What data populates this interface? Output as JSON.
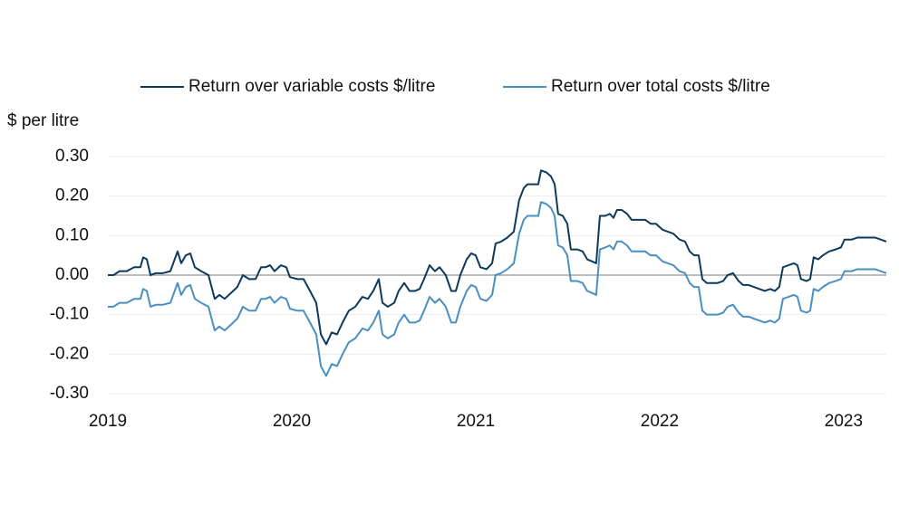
{
  "chart_data": {
    "type": "line",
    "y_axis_label": "$ per litre",
    "x": [
      2019,
      2019.03,
      2019.064,
      2019.103,
      2019.143,
      2019.177,
      2019.192,
      2019.212,
      2019.232,
      2019.261,
      2019.3,
      2019.34,
      2019.379,
      2019.399,
      2019.424,
      2019.448,
      2019.473,
      2019.507,
      2019.547,
      2019.581,
      2019.606,
      2019.635,
      2019.67,
      2019.704,
      2019.734,
      2019.768,
      2019.803,
      2019.833,
      2019.857,
      2019.882,
      2019.906,
      2019.941,
      2019.97,
      2019.99,
      2020.03,
      2020.064,
      2020.099,
      2020.133,
      2020.158,
      2020.187,
      2020.217,
      2020.246,
      2020.276,
      2020.31,
      2020.345,
      2020.384,
      2020.414,
      2020.443,
      2020.473,
      2020.493,
      2020.522,
      2020.557,
      2020.581,
      2020.611,
      2020.64,
      2020.67,
      2020.695,
      2020.719,
      2020.749,
      2020.778,
      2020.803,
      2020.837,
      2020.867,
      2020.892,
      2020.916,
      2020.951,
      2020.975,
      2021,
      2021.025,
      2021.059,
      2021.089,
      2021.108,
      2021.138,
      2021.172,
      2021.207,
      2021.236,
      2021.261,
      2021.281,
      2021.32,
      2021.34,
      2021.355,
      2021.384,
      2021.409,
      2021.429,
      2021.448,
      2021.473,
      2021.498,
      2021.517,
      2021.552,
      2021.581,
      2021.606,
      2021.631,
      2021.655,
      2021.675,
      2021.704,
      2021.729,
      2021.749,
      2021.768,
      2021.793,
      2021.823,
      2021.847,
      2021.887,
      2021.921,
      2021.951,
      2021.98,
      2022.015,
      2022.044,
      2022.074,
      2022.108,
      2022.138,
      2022.163,
      2022.187,
      2022.212,
      2022.232,
      2022.256,
      2022.286,
      2022.315,
      2022.345,
      2022.369,
      2022.399,
      2022.429,
      2022.453,
      2022.483,
      2022.512,
      2022.542,
      2022.571,
      2022.601,
      2022.626,
      2022.65,
      2022.67,
      2022.7,
      2022.729,
      2022.749,
      2022.768,
      2022.798,
      2022.818,
      2022.837,
      2022.862,
      2022.887,
      2022.921,
      2022.956,
      2022.985,
      2023.005,
      2023.044,
      2023.074,
      2023.103,
      2023.143,
      2023.172,
      2023.202,
      2023.232
    ],
    "series": [
      {
        "name": "Return over variable costs $/litre",
        "color": "#0d3a5c",
        "values": [
          0.0,
          0.0,
          0.01,
          0.01,
          0.02,
          0.02,
          0.045,
          0.04,
          0.0,
          0.005,
          0.005,
          0.01,
          0.06,
          0.03,
          0.05,
          0.055,
          0.02,
          0.01,
          0.0,
          -0.06,
          -0.05,
          -0.06,
          -0.045,
          -0.03,
          0.0,
          -0.01,
          -0.01,
          0.02,
          0.02,
          0.025,
          0.01,
          0.025,
          0.02,
          -0.005,
          -0.01,
          -0.01,
          -0.04,
          -0.07,
          -0.15,
          -0.175,
          -0.145,
          -0.15,
          -0.12,
          -0.09,
          -0.08,
          -0.055,
          -0.06,
          -0.04,
          -0.01,
          -0.07,
          -0.08,
          -0.07,
          -0.04,
          -0.02,
          -0.04,
          -0.04,
          -0.035,
          -0.01,
          0.025,
          0.01,
          0.02,
          0.0,
          -0.04,
          -0.04,
          0.0,
          0.04,
          0.055,
          0.05,
          0.02,
          0.015,
          0.03,
          0.08,
          0.085,
          0.095,
          0.11,
          0.19,
          0.22,
          0.23,
          0.23,
          0.23,
          0.265,
          0.26,
          0.25,
          0.23,
          0.155,
          0.15,
          0.13,
          0.065,
          0.065,
          0.06,
          0.04,
          0.035,
          0.03,
          0.15,
          0.15,
          0.155,
          0.145,
          0.165,
          0.165,
          0.155,
          0.14,
          0.14,
          0.14,
          0.13,
          0.13,
          0.115,
          0.11,
          0.105,
          0.09,
          0.085,
          0.06,
          0.05,
          0.05,
          -0.01,
          -0.02,
          -0.02,
          -0.02,
          -0.015,
          0.0,
          0.005,
          -0.015,
          -0.025,
          -0.025,
          -0.03,
          -0.035,
          -0.04,
          -0.035,
          -0.04,
          -0.03,
          0.02,
          0.025,
          0.03,
          0.025,
          -0.01,
          -0.015,
          -0.01,
          0.045,
          0.04,
          0.05,
          0.06,
          0.065,
          0.07,
          0.09,
          0.09,
          0.095,
          0.095,
          0.095,
          0.095,
          0.09,
          0.085
        ]
      },
      {
        "name": "Return over total costs $/litre",
        "color": "#4a8fc1",
        "values": [
          -0.08,
          -0.08,
          -0.07,
          -0.07,
          -0.06,
          -0.06,
          -0.035,
          -0.04,
          -0.08,
          -0.075,
          -0.075,
          -0.07,
          -0.02,
          -0.05,
          -0.03,
          -0.025,
          -0.06,
          -0.07,
          -0.08,
          -0.14,
          -0.13,
          -0.14,
          -0.125,
          -0.11,
          -0.08,
          -0.09,
          -0.09,
          -0.06,
          -0.06,
          -0.055,
          -0.07,
          -0.055,
          -0.06,
          -0.085,
          -0.09,
          -0.09,
          -0.12,
          -0.15,
          -0.23,
          -0.255,
          -0.225,
          -0.23,
          -0.2,
          -0.17,
          -0.16,
          -0.135,
          -0.14,
          -0.12,
          -0.09,
          -0.15,
          -0.16,
          -0.15,
          -0.12,
          -0.1,
          -0.12,
          -0.12,
          -0.115,
          -0.09,
          -0.055,
          -0.07,
          -0.06,
          -0.08,
          -0.12,
          -0.12,
          -0.08,
          -0.04,
          -0.025,
          -0.03,
          -0.06,
          -0.065,
          -0.05,
          0.0,
          0.005,
          0.015,
          0.03,
          0.105,
          0.14,
          0.15,
          0.15,
          0.15,
          0.185,
          0.18,
          0.17,
          0.15,
          0.075,
          0.07,
          0.05,
          -0.015,
          -0.015,
          -0.02,
          -0.04,
          -0.045,
          -0.05,
          0.065,
          0.07,
          0.075,
          0.065,
          0.085,
          0.085,
          0.075,
          0.06,
          0.06,
          0.06,
          0.05,
          0.05,
          0.035,
          0.03,
          0.025,
          0.01,
          0.005,
          -0.02,
          -0.03,
          -0.03,
          -0.09,
          -0.1,
          -0.1,
          -0.1,
          -0.095,
          -0.08,
          -0.075,
          -0.095,
          -0.105,
          -0.105,
          -0.11,
          -0.115,
          -0.12,
          -0.115,
          -0.12,
          -0.11,
          -0.06,
          -0.055,
          -0.05,
          -0.055,
          -0.09,
          -0.095,
          -0.09,
          -0.035,
          -0.04,
          -0.03,
          -0.02,
          -0.015,
          -0.01,
          0.01,
          0.01,
          0.015,
          0.015,
          0.015,
          0.015,
          0.01,
          0.005
        ]
      }
    ],
    "xlim": [
      2019,
      2023.232
    ],
    "xticks": [
      2019,
      2020,
      2021,
      2022,
      2023
    ],
    "ylim": [
      -0.3,
      0.3
    ],
    "yticks": [
      {
        "value": -0.3,
        "label": "-0.30"
      },
      {
        "value": -0.2,
        "label": "-0.20"
      },
      {
        "value": -0.1,
        "label": "-0.10"
      },
      {
        "value": 0,
        "label": "0.00"
      },
      {
        "value": 0.1,
        "label": "0.10"
      },
      {
        "value": 0.2,
        "label": "0.20"
      },
      {
        "value": 0.3,
        "label": "0.30"
      }
    ],
    "grid": true,
    "legend": "top"
  }
}
